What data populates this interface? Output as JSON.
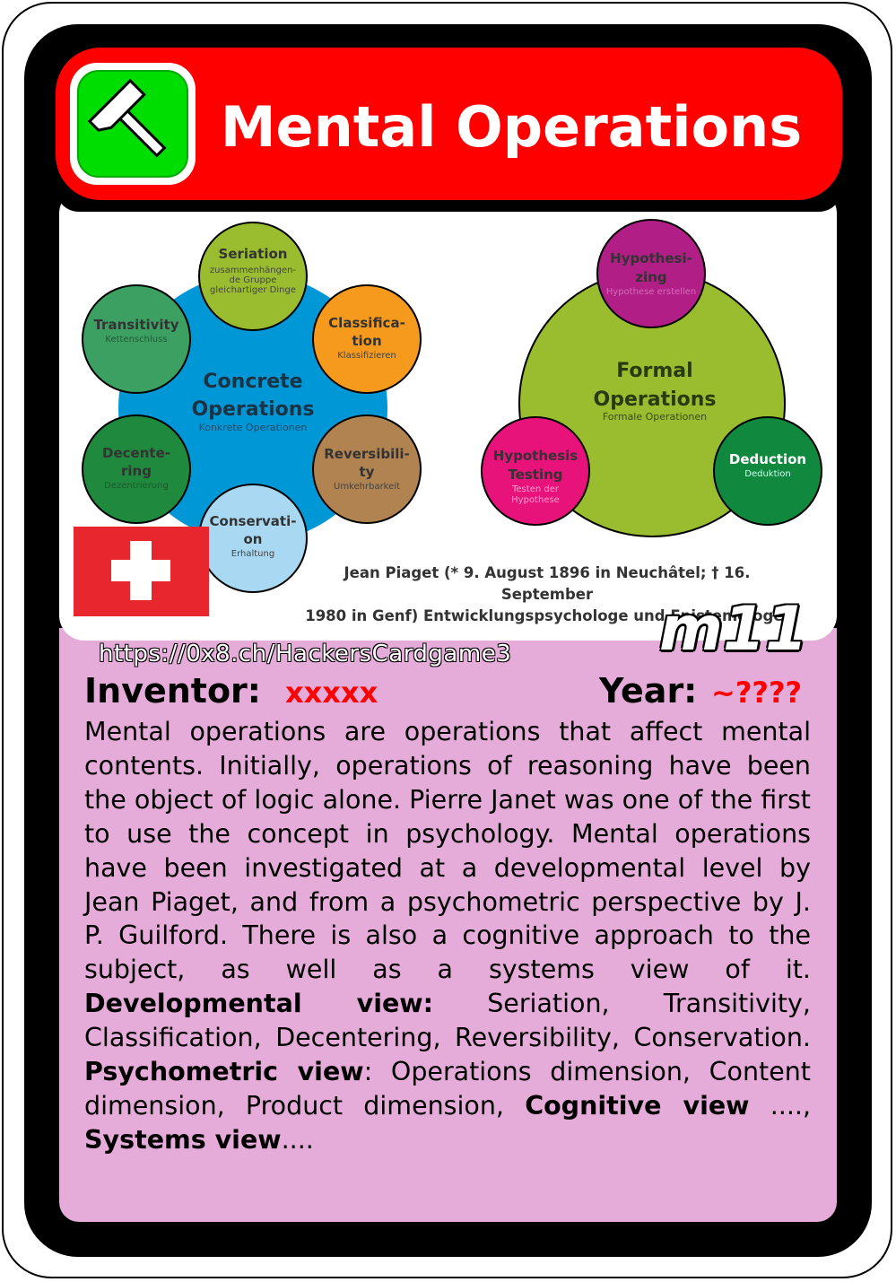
{
  "card": {
    "title": "Mental Operations",
    "icon": "hammer-icon",
    "colors": {
      "title_bar": "#ff0000",
      "icon_bg": "#00dd00",
      "panel": "#e6acd9",
      "value_red": "#ff0000"
    }
  },
  "diagram": {
    "concrete": {
      "title_line1": "Concrete",
      "title_line2": "Operations",
      "subtitle": "Konkrete Operationen",
      "nodes": [
        {
          "l1": "Seriation",
          "s1": "zusammenhängen-",
          "s2": "de Gruppe",
          "s3": "gleichartiger Dinge"
        },
        {
          "l1": "Classifica-",
          "l2": "tion",
          "s1": "Klassifizieren"
        },
        {
          "l1": "Reversibili-",
          "l2": "ty",
          "s1": "Umkehrbarkeit"
        },
        {
          "l1": "Conservati-",
          "l2": "on",
          "s1": "Erhaltung"
        },
        {
          "l1": "Decente-",
          "l2": "ring",
          "s1": "Dezentrierung"
        },
        {
          "l1": "Transitivity",
          "s1": "Kettenschluss"
        }
      ]
    },
    "formal": {
      "title_line1": "Formal",
      "title_line2": "Operations",
      "subtitle": "Formale Operationen",
      "nodes": [
        {
          "l1": "Hypothesi-",
          "l2": "zing",
          "s1": "Hypothese erstellen"
        },
        {
          "l1": "Deduction",
          "s1": "Deduktion"
        },
        {
          "l1": "Hypothesis",
          "l2": "Testing",
          "s1": "Testen der",
          "s2": "Hypothese"
        }
      ]
    }
  },
  "caption": {
    "line1": "Jean Piaget (* 9. August 1896 in Neuchâtel; † 16. September",
    "line2": "1980 in Genf) Entwicklungspsychologe und Epistemologe."
  },
  "url": "https://0x8.ch/HackersCardgame3",
  "card_code": "m11",
  "inventor": {
    "label": "Inventor:",
    "value": "xxxxx"
  },
  "year": {
    "label": "Year:",
    "value": "~????"
  },
  "description": {
    "intro": "Mental operations are operations that affect mental contents. Initially, operations of reasoning have been the object of logic alone. Pierre Janet was one of the first to use the concept in psychology. Mental operations have been investigated at a developmental level by Jean Piaget, and from a psychometric perspective by J. P. Guilford. There is also a cognitive approach to the subject, as well as a systems view of it. ",
    "dev_label": "Developmental view:",
    "dev_text": " Seriation, Transitivity, Classification, Decentering, Reversibility, Conservation. ",
    "psy_label": "Psychometric view",
    "psy_text": ": Operations dimension, Content dimension, Product dimension, ",
    "cog_label": "Cognitive view",
    "cog_text": " ...., ",
    "sys_label": "Systems view",
    "sys_text": "...."
  }
}
